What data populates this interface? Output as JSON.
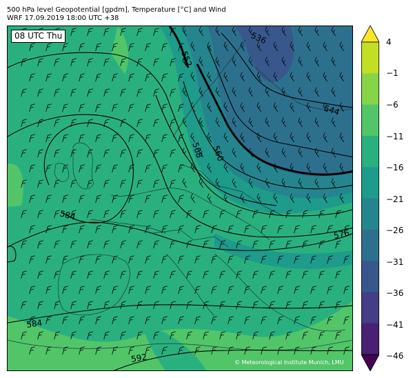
{
  "header": {
    "line1": "500 hPa level Geopotential [gpdm], Temperature [°C] and Wind",
    "line2": "WRF 17.09.2019 18:00 UTC +38"
  },
  "map": {
    "valid_time_label": "08 UTC Thu",
    "copyright": "© Meteorological Institute Munich, LMU",
    "contour_labels": [
      "536",
      "544",
      "552",
      "560",
      "568",
      "576",
      "584",
      "584",
      "592"
    ]
  },
  "colorbar": {
    "tick_labels": [
      "4",
      "−1",
      "−6",
      "−11",
      "−16",
      "−21",
      "−26",
      "−31",
      "−36",
      "−41",
      "−46"
    ],
    "colors": [
      "#fde725",
      "#c2df23",
      "#86d549",
      "#52c569",
      "#2ab07f",
      "#1e9b8a",
      "#25858e",
      "#2d708e",
      "#38588c",
      "#433e85",
      "#482173",
      "#440154"
    ]
  }
}
